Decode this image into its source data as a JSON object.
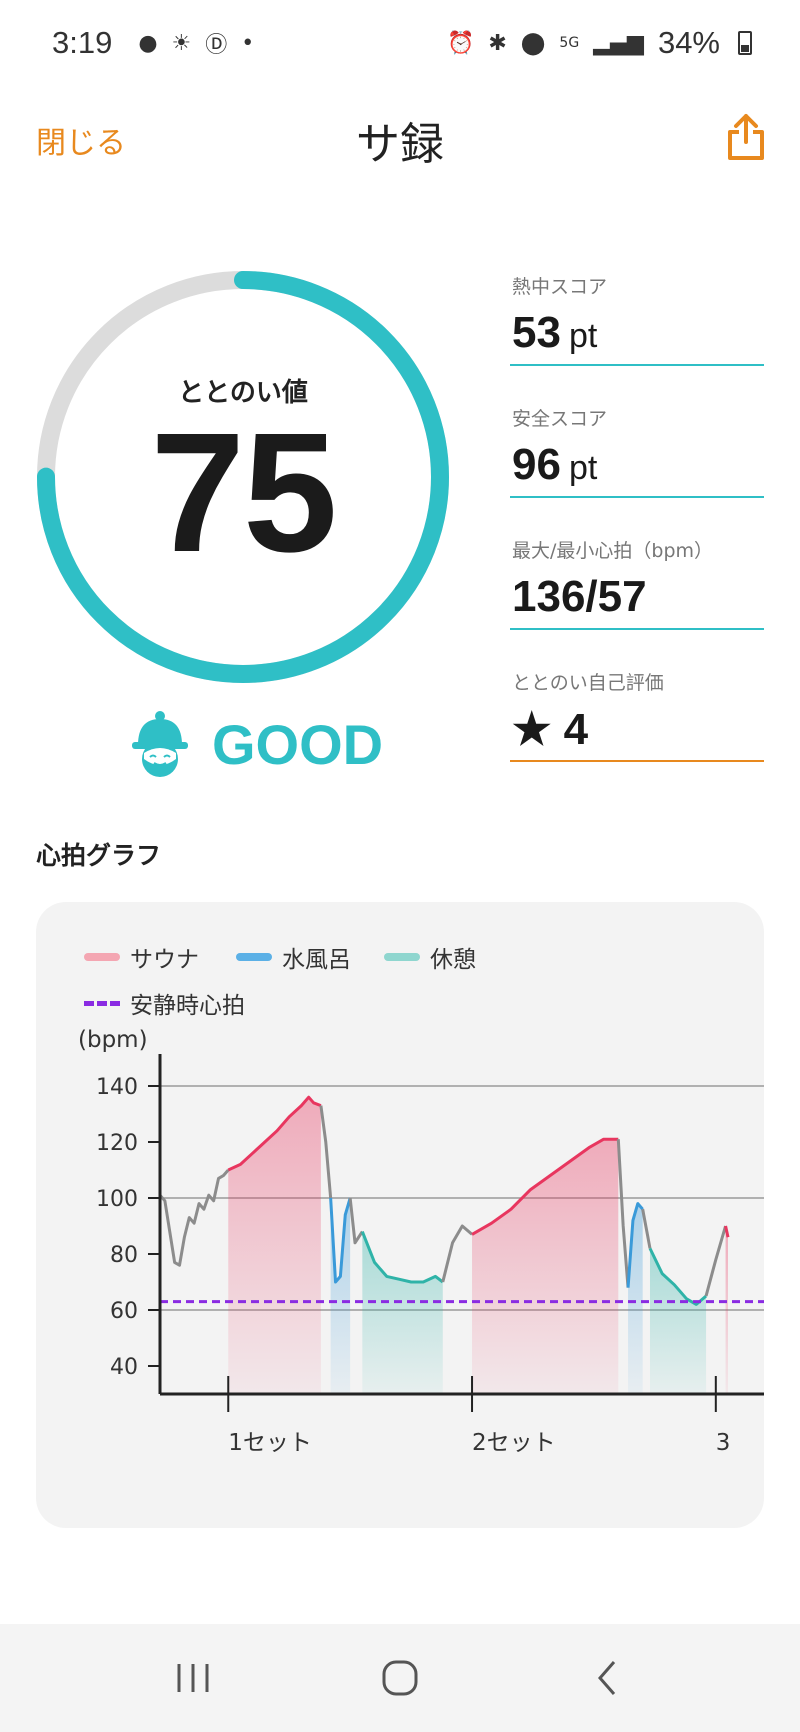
{
  "status_bar": {
    "time": "3:19",
    "battery": "34%",
    "network": "5G"
  },
  "header": {
    "close_label": "閉じる",
    "title": "サ録"
  },
  "score": {
    "label": "ととのい値",
    "value": "75",
    "progress": 0.75,
    "verdict": "GOOD"
  },
  "stats": [
    {
      "label": "熱中スコア",
      "value": "53",
      "unit": "pt"
    },
    {
      "label": "安全スコア",
      "value": "96",
      "unit": "pt"
    },
    {
      "label": "最大/最小心拍（bpm）",
      "value": "136/57",
      "unit": ""
    },
    {
      "label": "ととのい自己評価",
      "value": "★ 4",
      "unit": ""
    }
  ],
  "heart_section": {
    "title": "心拍グラフ"
  },
  "colors": {
    "accent": "#e8891e",
    "teal": "#2fbfc6",
    "sauna": "#e8365f",
    "cold_bath": "#3a9ad9",
    "rest": "#2fb3a8",
    "resting_hr": "#8a2be2",
    "other": "#8c8c8c"
  },
  "chart_data": {
    "type": "line",
    "ylabel": "(bpm)",
    "ylim": [
      30,
      145
    ],
    "yticks": [
      40,
      60,
      80,
      100,
      120,
      140
    ],
    "xticks": [
      {
        "x": 1,
        "label": "1セット"
      },
      {
        "x": 2,
        "label": "2セット"
      },
      {
        "x": 3,
        "label": "3"
      }
    ],
    "legend": [
      "サウナ",
      "水風呂",
      "休憩",
      "安静時心拍"
    ],
    "resting_hr": 63,
    "series": [
      {
        "name": "",
        "phase": "other",
        "x": [
          0.72,
          0.74,
          0.76,
          0.78,
          0.8,
          0.82,
          0.84,
          0.86,
          0.88,
          0.9,
          0.92,
          0.94,
          0.96,
          0.98,
          1.0
        ],
        "y": [
          101,
          99,
          88,
          77,
          76,
          86,
          93,
          91,
          98,
          96,
          101,
          99,
          107,
          108,
          110
        ]
      },
      {
        "name": "サウナ",
        "phase": "sauna",
        "x": [
          1.0,
          1.05,
          1.1,
          1.15,
          1.2,
          1.25,
          1.3,
          1.33,
          1.35,
          1.38
        ],
        "y": [
          110,
          112,
          116,
          120,
          124,
          129,
          133,
          136,
          134,
          133
        ]
      },
      {
        "name": "",
        "phase": "other",
        "x": [
          1.38,
          1.4,
          1.42
        ],
        "y": [
          133,
          120,
          100
        ]
      },
      {
        "name": "水風呂",
        "phase": "cold",
        "x": [
          1.42,
          1.44,
          1.46,
          1.48,
          1.5
        ],
        "y": [
          100,
          70,
          72,
          94,
          100
        ]
      },
      {
        "name": "",
        "phase": "other",
        "x": [
          1.5,
          1.52,
          1.55
        ],
        "y": [
          100,
          84,
          88
        ]
      },
      {
        "name": "休憩",
        "phase": "rest",
        "x": [
          1.55,
          1.6,
          1.65,
          1.7,
          1.75,
          1.8,
          1.85,
          1.88
        ],
        "y": [
          88,
          77,
          72,
          71,
          70,
          70,
          72,
          70
        ]
      },
      {
        "name": "",
        "phase": "other",
        "x": [
          1.88,
          1.92,
          1.96,
          2.0
        ],
        "y": [
          70,
          84,
          90,
          87
        ]
      },
      {
        "name": "サウナ",
        "phase": "sauna",
        "x": [
          2.0,
          2.08,
          2.16,
          2.24,
          2.32,
          2.4,
          2.48,
          2.54,
          2.6
        ],
        "y": [
          87,
          91,
          96,
          103,
          108,
          113,
          118,
          121,
          121
        ]
      },
      {
        "name": "",
        "phase": "other",
        "x": [
          2.6,
          2.62,
          2.64
        ],
        "y": [
          121,
          90,
          68
        ]
      },
      {
        "name": "水風呂",
        "phase": "cold",
        "x": [
          2.64,
          2.66,
          2.68,
          2.7
        ],
        "y": [
          68,
          92,
          98,
          96
        ]
      },
      {
        "name": "",
        "phase": "other",
        "x": [
          2.7,
          2.73
        ],
        "y": [
          96,
          82
        ]
      },
      {
        "name": "休憩",
        "phase": "rest",
        "x": [
          2.73,
          2.78,
          2.83,
          2.88,
          2.92,
          2.96
        ],
        "y": [
          82,
          73,
          69,
          64,
          62,
          65
        ]
      },
      {
        "name": "",
        "phase": "other",
        "x": [
          2.96,
          3.0,
          3.04
        ],
        "y": [
          65,
          78,
          90
        ]
      },
      {
        "name": "サウナ",
        "phase": "sauna",
        "x": [
          3.04,
          3.05
        ],
        "y": [
          90,
          86
        ]
      }
    ]
  }
}
